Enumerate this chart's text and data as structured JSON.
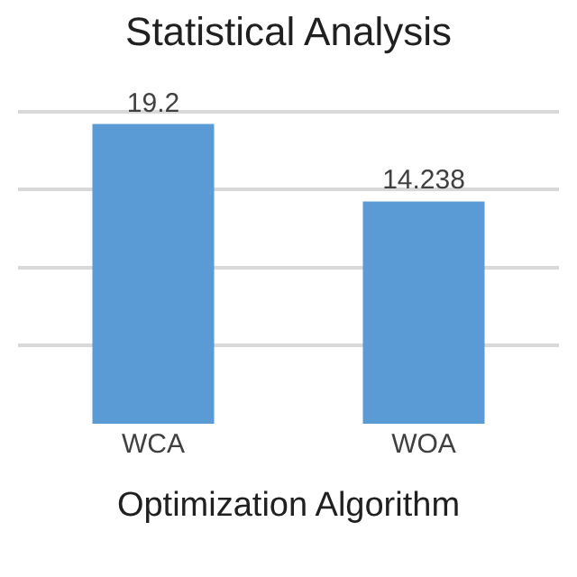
{
  "chart_data": {
    "type": "bar",
    "title": "Statistical Analysis",
    "xlabel": "Optimization Algorithm",
    "categories": [
      "WCA",
      "WOA"
    ],
    "values": [
      19.2,
      14.238
    ],
    "value_labels": [
      "19.2",
      "14.238"
    ],
    "color": "#5b9bd5",
    "grid": "y",
    "tick_labels": "x"
  }
}
